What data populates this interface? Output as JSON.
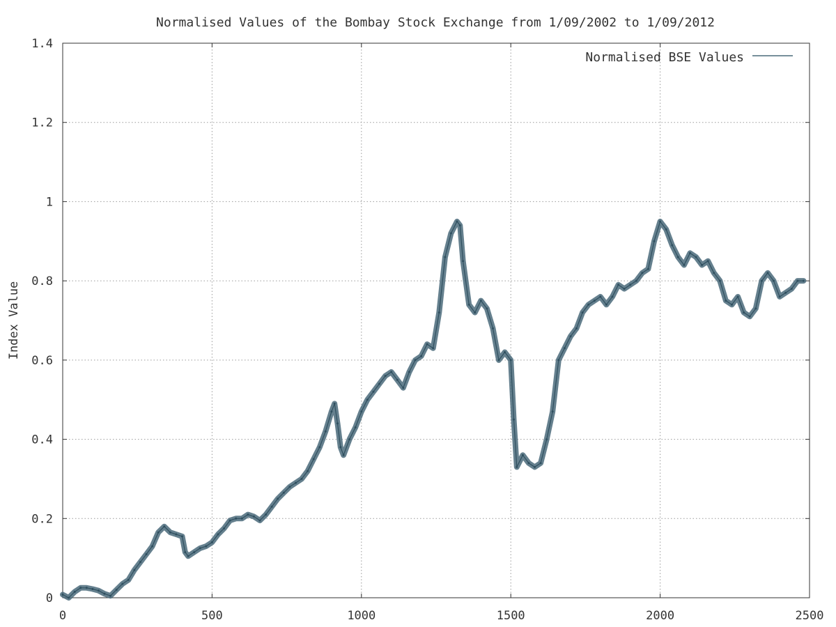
{
  "chart_data": {
    "type": "line",
    "title": "Normalised Values of the Bombay Stock Exchange from 1/09/2002 to 1/09/2012",
    "xlabel": "",
    "ylabel": "Index Value",
    "xlim": [
      0,
      2500
    ],
    "ylim": [
      0,
      1.4
    ],
    "x_ticks": [
      0,
      500,
      1000,
      1500,
      2000,
      2500
    ],
    "x_tick_labels": [
      "0",
      "500",
      "1000",
      "1500",
      "2000",
      "2500"
    ],
    "y_ticks": [
      0,
      0.2,
      0.4,
      0.6,
      0.8,
      1.0,
      1.2,
      1.4
    ],
    "y_tick_labels": [
      "0",
      "0.2",
      "0.4",
      "0.6",
      "0.8",
      "1",
      "1.2",
      "1.4"
    ],
    "grid": true,
    "legend_position": "top-right",
    "series": [
      {
        "name": "Normalised BSE Values",
        "color": "#4a6a7a",
        "x": [
          0,
          20,
          40,
          60,
          80,
          100,
          120,
          140,
          160,
          180,
          200,
          220,
          240,
          260,
          280,
          300,
          320,
          340,
          360,
          380,
          400,
          410,
          420,
          440,
          460,
          480,
          500,
          520,
          540,
          560,
          580,
          600,
          620,
          640,
          660,
          680,
          700,
          720,
          740,
          760,
          780,
          800,
          820,
          840,
          860,
          880,
          900,
          910,
          920,
          930,
          940,
          960,
          980,
          1000,
          1020,
          1040,
          1060,
          1080,
          1100,
          1120,
          1140,
          1160,
          1180,
          1200,
          1220,
          1240,
          1260,
          1280,
          1300,
          1320,
          1330,
          1340,
          1360,
          1380,
          1400,
          1420,
          1440,
          1460,
          1480,
          1500,
          1510,
          1520,
          1540,
          1560,
          1580,
          1600,
          1620,
          1640,
          1660,
          1680,
          1700,
          1720,
          1740,
          1760,
          1780,
          1800,
          1820,
          1840,
          1860,
          1880,
          1900,
          1920,
          1940,
          1960,
          1980,
          2000,
          2020,
          2040,
          2060,
          2080,
          2100,
          2120,
          2140,
          2160,
          2180,
          2200,
          2220,
          2240,
          2260,
          2280,
          2300,
          2320,
          2340,
          2360,
          2380,
          2400,
          2420,
          2440,
          2460,
          2480
        ],
        "y": [
          0.008,
          0.0,
          0.015,
          0.025,
          0.025,
          0.022,
          0.018,
          0.01,
          0.005,
          0.02,
          0.035,
          0.045,
          0.07,
          0.09,
          0.11,
          0.13,
          0.165,
          0.18,
          0.165,
          0.16,
          0.155,
          0.115,
          0.105,
          0.115,
          0.125,
          0.13,
          0.14,
          0.16,
          0.175,
          0.195,
          0.2,
          0.2,
          0.21,
          0.205,
          0.195,
          0.21,
          0.23,
          0.25,
          0.265,
          0.28,
          0.29,
          0.3,
          0.32,
          0.35,
          0.38,
          0.42,
          0.47,
          0.49,
          0.44,
          0.38,
          0.36,
          0.4,
          0.43,
          0.47,
          0.5,
          0.52,
          0.54,
          0.56,
          0.57,
          0.55,
          0.53,
          0.57,
          0.6,
          0.61,
          0.64,
          0.63,
          0.72,
          0.86,
          0.92,
          0.95,
          0.94,
          0.85,
          0.74,
          0.72,
          0.75,
          0.73,
          0.68,
          0.6,
          0.62,
          0.6,
          0.45,
          0.33,
          0.36,
          0.34,
          0.33,
          0.34,
          0.4,
          0.47,
          0.6,
          0.63,
          0.66,
          0.68,
          0.72,
          0.74,
          0.75,
          0.76,
          0.74,
          0.76,
          0.79,
          0.78,
          0.79,
          0.8,
          0.82,
          0.83,
          0.9,
          0.95,
          0.93,
          0.89,
          0.86,
          0.84,
          0.87,
          0.86,
          0.84,
          0.85,
          0.82,
          0.8,
          0.75,
          0.74,
          0.76,
          0.72,
          0.71,
          0.73,
          0.8,
          0.82,
          0.8,
          0.76,
          0.77,
          0.78,
          0.8,
          0.8
        ]
      }
    ]
  }
}
